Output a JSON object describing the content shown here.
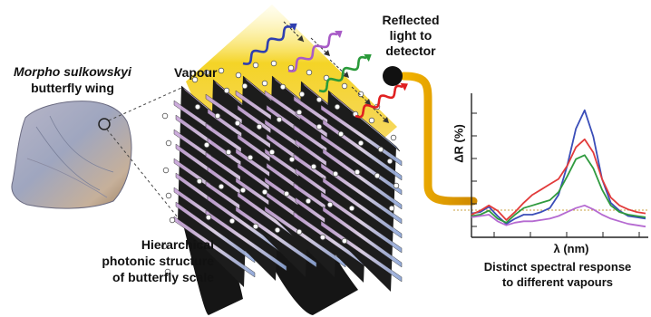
{
  "labels": {
    "species": "Morpho sulkowskyi",
    "wing": "butterfly wing",
    "vapour": "Vapour",
    "detector_line1": "Reflected",
    "detector_line2": "light to",
    "detector_line3": "detector",
    "structure_line1": "Hierarchical",
    "structure_line2": "photonic structure",
    "structure_line3": "of butterfly scale",
    "response_line1": "Distinct spectral response",
    "response_line2": "to different vapours"
  },
  "chart_data": {
    "type": "line",
    "title": "",
    "xlabel": "λ (nm)",
    "ylabel": "ΔR (%)",
    "y_tick_count": 6,
    "x_tick_count": 5,
    "grid": false,
    "x": [
      0,
      5,
      10,
      15,
      20,
      25,
      30,
      35,
      40,
      45,
      50,
      55,
      60,
      65,
      70,
      75,
      80,
      85,
      90,
      95,
      100
    ],
    "series": [
      {
        "color": "#3a4db8",
        "values": [
          4,
          5,
          9,
          2,
          -4,
          0,
          3,
          3,
          5,
          8,
          18,
          40,
          68,
          82,
          62,
          30,
          12,
          6,
          2,
          1,
          0
        ]
      },
      {
        "color": "#e23b3b",
        "values": [
          3,
          6,
          10,
          6,
          -1,
          5,
          12,
          18,
          22,
          26,
          30,
          40,
          54,
          60,
          50,
          30,
          16,
          10,
          7,
          5,
          4
        ]
      },
      {
        "color": "#2f9a3e",
        "values": [
          2,
          3,
          6,
          0,
          -3,
          3,
          8,
          10,
          12,
          14,
          20,
          32,
          45,
          48,
          38,
          22,
          10,
          5,
          3,
          2,
          1
        ]
      },
      {
        "color": "#b56ad1",
        "values": [
          1,
          2,
          3,
          -2,
          -5,
          -3,
          -2,
          -2,
          -1,
          0,
          2,
          5,
          8,
          10,
          7,
          3,
          0,
          -2,
          -4,
          -5,
          -6
        ]
      }
    ]
  },
  "colors": {
    "light_beam": "#f1d21e",
    "waveguide": "#e6a700",
    "detector": "#111111",
    "arrow_blue": "#2f3fb0",
    "arrow_purple": "#a85bc7",
    "arrow_green": "#2a9a3a",
    "arrow_red": "#e02020"
  }
}
